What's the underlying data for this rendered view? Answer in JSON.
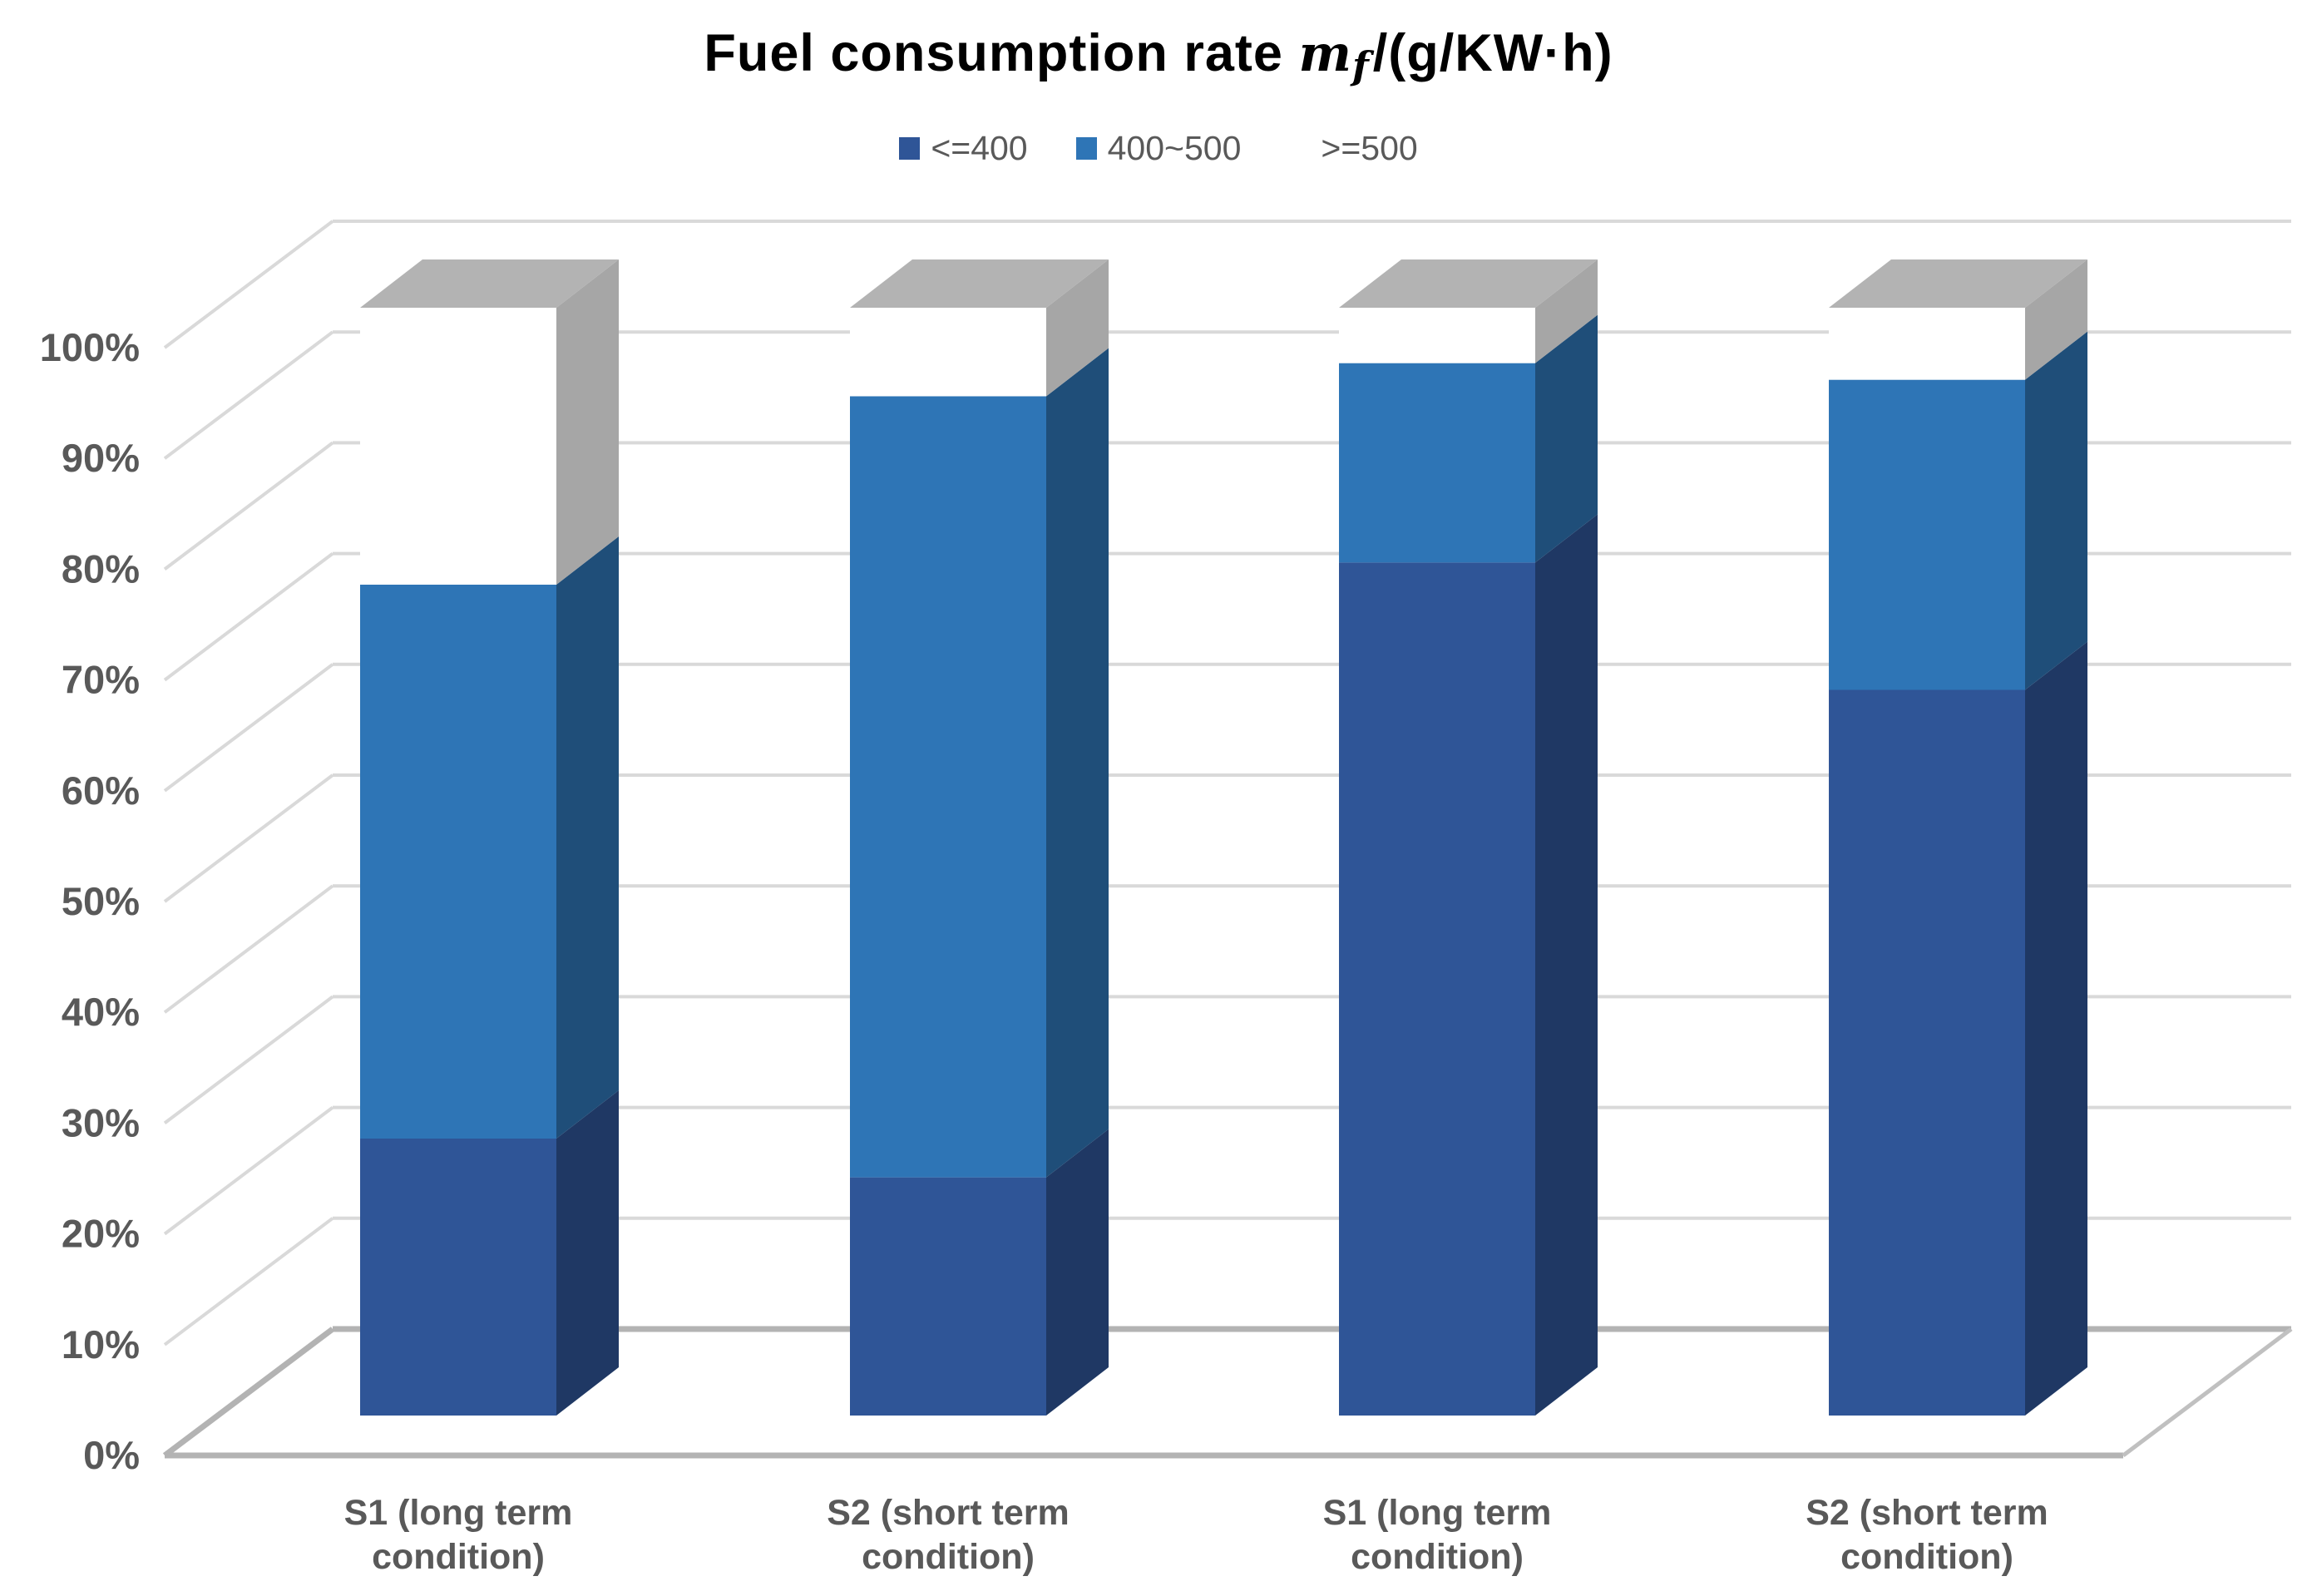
{
  "page": {
    "background": "#ffffff"
  },
  "title": {
    "prefix": "Fuel consumption rate ",
    "math_symbol": "m",
    "math_subscript": "f",
    "suffix": "/(g/KW·h)"
  },
  "legend": {
    "position": "top",
    "items": [
      {
        "label": "<=400",
        "color": "#2f5597"
      },
      {
        "label": "400~500",
        "color": "#2e75b6"
      },
      {
        "label": ">=500",
        "color": "#ffffff"
      }
    ]
  },
  "chart_data": {
    "type": "bar",
    "subtype": "3d-100-percent-stacked-column",
    "title": "Fuel consumption rate mf/(g/KW·h)",
    "unit": "percent",
    "categories": [
      "S1 (long  term condition)",
      "S2 (short  term condition)",
      "S1 (long  term condition)",
      "S2 (short  term condition)"
    ],
    "category_lines": [
      [
        "S1 (long  term",
        "condition)"
      ],
      [
        "S2 (short  term",
        "condition)"
      ],
      [
        "S1 (long  term",
        "condition)"
      ],
      [
        "S2 (short  term",
        "condition)"
      ]
    ],
    "series": [
      {
        "name": "<=400",
        "values": [
          25,
          21.5,
          77,
          65.5
        ],
        "front_color": "#2f5597",
        "side_color": "#1f3864"
      },
      {
        "name": "400~500",
        "values": [
          50,
          70.5,
          18,
          28
        ],
        "front_color": "#2e75b6",
        "side_color": "#1f4e79"
      },
      {
        "name": ">=500",
        "values": [
          25,
          8,
          5,
          6.5
        ],
        "front_color": "#ffffff",
        "side_color": "#a6a6a6",
        "top_color": "#b3b3b3"
      }
    ],
    "y_axis": {
      "min": 0,
      "max": 100,
      "step": 10,
      "tick_labels": [
        "0%",
        "10%",
        "20%",
        "30%",
        "40%",
        "50%",
        "60%",
        "70%",
        "80%",
        "90%",
        "100%"
      ]
    },
    "grid": true,
    "legend_position": "top",
    "gridline_color": "#d9d9d9",
    "floor_color": "#b3b3b3",
    "axis_text_color": "#595959"
  }
}
